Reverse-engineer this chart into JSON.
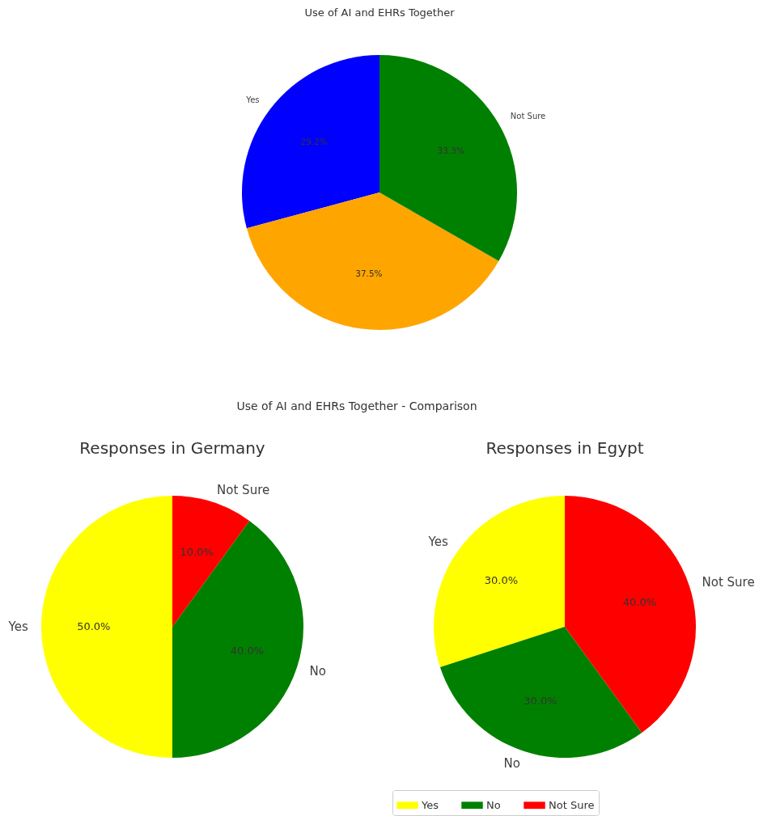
{
  "chart_data": [
    {
      "type": "pie",
      "title": "Use of AI and EHRs Together",
      "categories": [
        "Yes",
        null,
        "Not Sure"
      ],
      "values": [
        29.2,
        37.5,
        33.3
      ],
      "colors": [
        "#0000ff",
        "#ffa500",
        "#008000"
      ],
      "value_labels": [
        "29.2%",
        "37.5%",
        "33.3%"
      ]
    },
    {
      "type": "pie",
      "title": "Responses in Germany",
      "annotations": [
        "Use of AI and EHRs Together - Comparison"
      ],
      "categories": [
        "Yes",
        "No",
        "Not Sure"
      ],
      "values": [
        50,
        40,
        10
      ],
      "colors": [
        "#ffff00",
        "#008000",
        "#ff0000"
      ],
      "value_labels": [
        "50.0%",
        "40.0%",
        "10.0%"
      ]
    },
    {
      "type": "pie",
      "title": "Responses in Egypt",
      "categories": [
        "Yes",
        "No",
        "Not Sure"
      ],
      "values": [
        30,
        30,
        40
      ],
      "colors": [
        "#ffff00",
        "#008000",
        "#ff0000"
      ],
      "value_labels": [
        "30.0%",
        "30.0%",
        "40.0%"
      ],
      "legend": "bottom"
    }
  ]
}
